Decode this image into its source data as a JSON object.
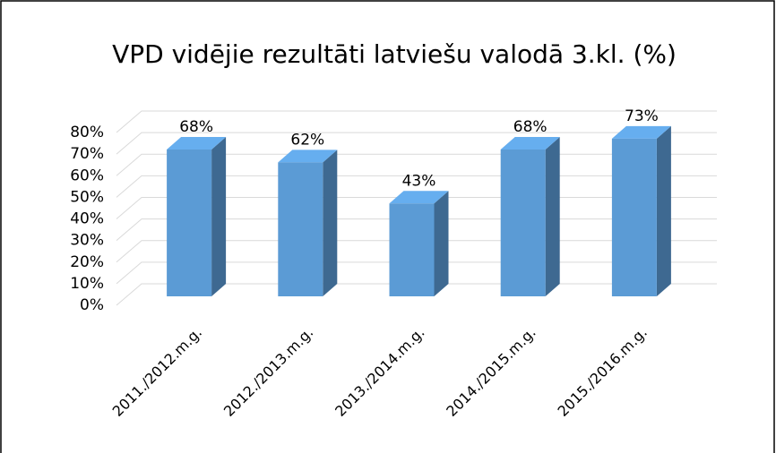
{
  "chart_data": {
    "type": "bar3d",
    "title": "VPD vidējie rezultāti latviešu valodā 3.kl. (%)",
    "categories": [
      "2011./2012.m.g.",
      "2012./2013.m.g.",
      "2013./2014.m.g.",
      "2014./2015.m.g.",
      "2015./2016.m.g."
    ],
    "values": [
      68,
      62,
      43,
      68,
      73
    ],
    "value_labels": [
      "68%",
      "62%",
      "43%",
      "68%",
      "73%"
    ],
    "color": "#5b9bd5",
    "ylim": [
      0,
      80
    ],
    "yticks": [
      {
        "value": 0,
        "label": "0%"
      },
      {
        "value": 10,
        "label": "10%"
      },
      {
        "value": 20,
        "label": "20%"
      },
      {
        "value": 30,
        "label": "30%"
      },
      {
        "value": 40,
        "label": "40%"
      },
      {
        "value": 50,
        "label": "50%"
      },
      {
        "value": 60,
        "label": "60%"
      },
      {
        "value": 70,
        "label": "70%"
      },
      {
        "value": 80,
        "label": "80%"
      }
    ],
    "grid": true
  }
}
